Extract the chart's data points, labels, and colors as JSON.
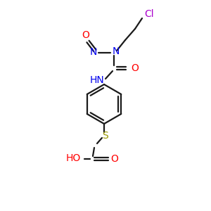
{
  "background_color": "#ffffff",
  "bond_color": "#1a1a1a",
  "atom_colors": {
    "O": "#ff0000",
    "N": "#0000ee",
    "S": "#999900",
    "Cl": "#aa00cc"
  },
  "figsize": [
    3.0,
    3.0
  ],
  "dpi": 100
}
